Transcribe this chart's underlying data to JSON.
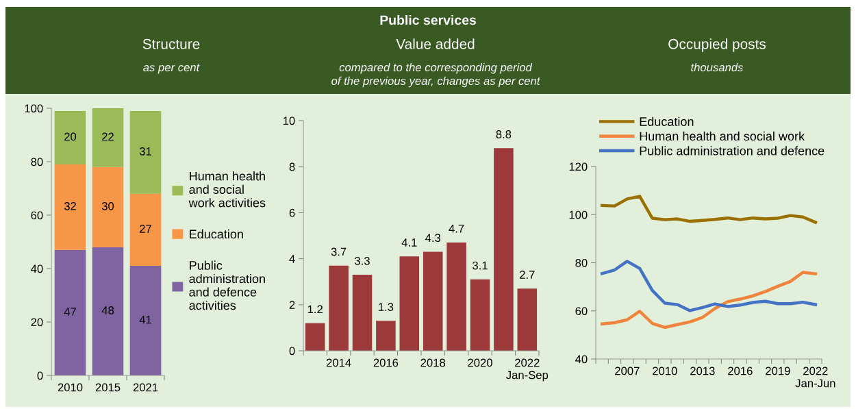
{
  "chart_data": [
    {
      "type": "bar",
      "stacked": true,
      "title": "Structure",
      "subtitle": "as per cent",
      "annotations": [
        "Public services"
      ],
      "categories": [
        "2010",
        "2015",
        "2021"
      ],
      "series": [
        {
          "name": "Public\nadministration\nand defence\nactivities",
          "color": "#8064a2",
          "values": [
            47,
            48,
            41
          ]
        },
        {
          "name": "Education",
          "color": "#f79646",
          "values": [
            32,
            30,
            27
          ]
        },
        {
          "name": "Human health\nand social\nwork activities",
          "color": "#9bbb59",
          "values": [
            20,
            22,
            31
          ]
        }
      ],
      "ylim": [
        0,
        100
      ],
      "yticks": [
        0,
        20,
        40,
        60,
        80,
        100
      ],
      "data_labels": true,
      "legend": "right",
      "grid": false
    },
    {
      "type": "bar",
      "title": "Value added",
      "subtitle": "compared to the corresponding period\nof the previous year, changes as per cent",
      "categories": [
        null,
        "2014",
        null,
        "2016",
        null,
        "2018",
        null,
        "2020",
        null,
        "2022\nJan-Sep"
      ],
      "series": [
        {
          "color": "#9c3a3b",
          "values": [
            1.2,
            3.7,
            3.3,
            1.3,
            4.1,
            4.3,
            4.7,
            3.1,
            8.8,
            2.7
          ]
        }
      ],
      "ylim": [
        0,
        10
      ],
      "yticks": [
        0,
        2,
        4,
        6,
        8,
        10
      ],
      "data_labels": true,
      "grid": false
    },
    {
      "type": "line",
      "title": "Occupied posts",
      "subtitle": "thousands",
      "categories": [
        null,
        null,
        "2007",
        null,
        null,
        "2010",
        null,
        null,
        "2013",
        null,
        null,
        "2016",
        null,
        null,
        "2019",
        null,
        null,
        "2022\nJan-Jun"
      ],
      "series": [
        {
          "name": "Education",
          "color": "#9a7100",
          "values": [
            103.8,
            103.6,
            106.5,
            107.6,
            98.5,
            97.9,
            98.2,
            97.2,
            97.6,
            98.0,
            98.6,
            97.9,
            98.6,
            98.2,
            98.5,
            99.6,
            99.0,
            96.8
          ]
        },
        {
          "name": "Human health and social work",
          "color": "#f0843c",
          "values": [
            54.6,
            55.1,
            56.3,
            59.8,
            54.8,
            53.1,
            54.3,
            55.4,
            57.3,
            61.0,
            63.8,
            64.9,
            66.2,
            68.0,
            70.2,
            72.2,
            76.0,
            75.4
          ]
        },
        {
          "name": "Public administration and defence",
          "color": "#4472c4",
          "values": [
            75.5,
            77.0,
            80.6,
            77.6,
            68.5,
            63.2,
            62.6,
            60.1,
            61.4,
            62.9,
            61.8,
            62.4,
            63.5,
            64.0,
            63.0,
            63.0,
            63.6,
            62.6
          ]
        }
      ],
      "ylim": [
        40,
        120
      ],
      "yticks": [
        40,
        60,
        80,
        100,
        120
      ],
      "legend": "top",
      "marker": "none",
      "line_style": "solid",
      "grid": false
    }
  ]
}
